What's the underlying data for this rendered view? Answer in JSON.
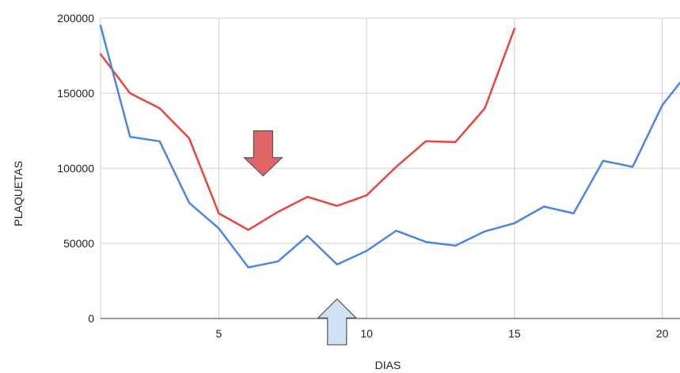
{
  "chart_data": {
    "type": "line",
    "title": "",
    "xlabel": "DIAS",
    "ylabel": "PLAQUETAS",
    "xlim": [
      1,
      20.6
    ],
    "ylim": [
      0,
      200000
    ],
    "x_ticks": [
      5,
      10,
      15,
      20
    ],
    "y_ticks": [
      0,
      50000,
      100000,
      150000,
      200000
    ],
    "grid": true,
    "legend": "none",
    "series": [
      {
        "color": "#e8453c",
        "x": [
          1,
          2,
          3,
          4,
          5,
          6,
          7,
          8,
          9,
          10,
          11,
          12,
          13,
          14,
          15
        ],
        "values": [
          176000,
          150000,
          140000,
          120000,
          70000,
          59000,
          71000,
          81000,
          75000,
          82000,
          101000,
          118000,
          117500,
          140000,
          193000
        ]
      },
      {
        "color": "#4a86e8",
        "x": [
          1,
          2,
          3,
          4,
          5,
          6,
          7,
          8,
          9,
          10,
          11,
          12,
          13,
          14,
          15,
          16,
          17,
          18,
          19,
          20,
          20.6
        ],
        "values": [
          195000,
          121000,
          118000,
          77000,
          60000,
          34000,
          38000,
          55000,
          36000,
          45000,
          58500,
          51000,
          48500,
          58000,
          63500,
          74500,
          70000,
          105000,
          101000,
          142000,
          157000
        ]
      }
    ],
    "annotations": [
      {
        "shape": "arrow-down",
        "color": "#e06666",
        "x": 6.5,
        "y": 95000
      },
      {
        "shape": "arrow-up",
        "color": "#cfe2f3",
        "x": 9,
        "y": 13000
      }
    ]
  }
}
